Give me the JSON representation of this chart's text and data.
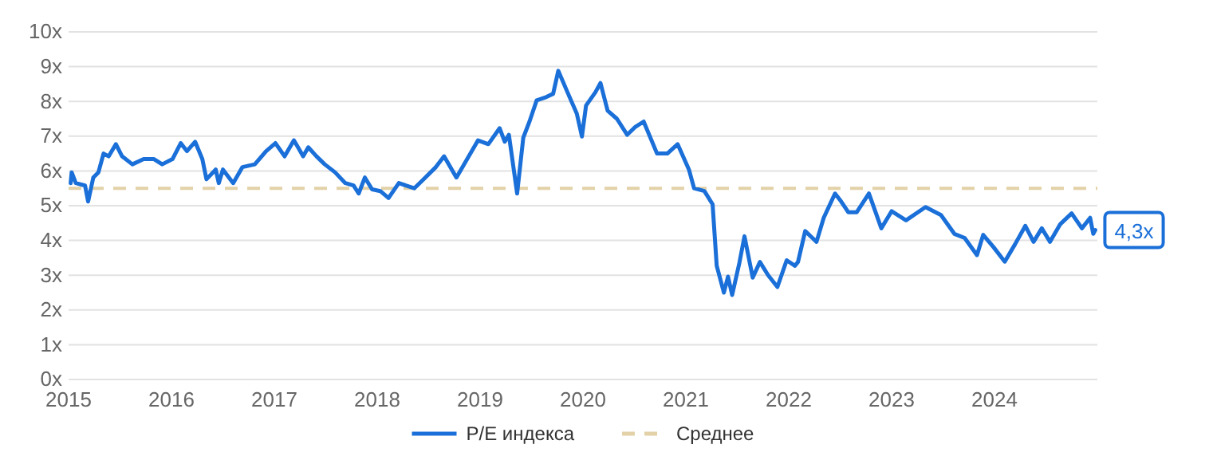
{
  "chart_data": {
    "type": "line",
    "xlim": [
      2015,
      2025
    ],
    "xticks": [
      2015,
      2016,
      2017,
      2018,
      2019,
      2020,
      2021,
      2022,
      2023,
      2024
    ],
    "ylim": [
      0,
      10
    ],
    "yticks": [
      {
        "value": 0,
        "label": "0x"
      },
      {
        "value": 1,
        "label": "1x"
      },
      {
        "value": 2,
        "label": "2x"
      },
      {
        "value": 3,
        "label": "3x"
      },
      {
        "value": 4,
        "label": "4x"
      },
      {
        "value": 5,
        "label": "5x"
      },
      {
        "value": 6,
        "label": "6x"
      },
      {
        "value": 7,
        "label": "7x"
      },
      {
        "value": 8,
        "label": "8x"
      },
      {
        "value": 9,
        "label": "9x"
      },
      {
        "value": 10,
        "label": "10x"
      }
    ],
    "grid": "y",
    "legend": "bottom",
    "marker": "none",
    "line_style": "solid",
    "series": [
      {
        "name": "P/E индекса",
        "color": "#1a6fd8",
        "x": [
          2015.02,
          2015.03,
          2015.07,
          2015.16,
          2015.19,
          2015.24,
          2015.29,
          2015.34,
          2015.39,
          2015.46,
          2015.52,
          2015.62,
          2015.73,
          2015.83,
          2015.91,
          2016.01,
          2016.09,
          2016.15,
          2016.23,
          2016.3,
          2016.34,
          2016.43,
          2016.46,
          2016.5,
          2016.6,
          2016.69,
          2016.81,
          2016.92,
          2017.01,
          2017.1,
          2017.19,
          2017.23,
          2017.28,
          2017.33,
          2017.41,
          2017.49,
          2017.59,
          2017.69,
          2017.77,
          2017.82,
          2017.88,
          2017.95,
          2018.03,
          2018.11,
          2018.21,
          2018.36,
          2018.44,
          2018.57,
          2018.65,
          2018.77,
          2018.88,
          2018.98,
          2019.08,
          2019.19,
          2019.24,
          2019.28,
          2019.36,
          2019.42,
          2019.48,
          2019.55,
          2019.63,
          2019.71,
          2019.76,
          2019.85,
          2019.94,
          2019.99,
          2020.03,
          2020.12,
          2020.17,
          2020.24,
          2020.33,
          2020.43,
          2020.51,
          2020.59,
          2020.72,
          2020.82,
          2020.92,
          2021.03,
          2021.08,
          2021.18,
          2021.26,
          2021.3,
          2021.37,
          2021.41,
          2021.45,
          2021.52,
          2021.57,
          2021.65,
          2021.72,
          2021.8,
          2021.89,
          2021.98,
          2022.06,
          2022.09,
          2022.16,
          2022.27,
          2022.34,
          2022.45,
          2022.51,
          2022.58,
          2022.66,
          2022.78,
          2022.9,
          2023.0,
          2023.14,
          2023.33,
          2023.48,
          2023.61,
          2023.71,
          2023.83,
          2023.89,
          2023.99,
          2024.1,
          2024.2,
          2024.3,
          2024.38,
          2024.46,
          2024.54,
          2024.64,
          2024.75,
          2024.85,
          2024.93,
          2024.96,
          2024.98
        ],
        "values": [
          5.65,
          5.96,
          5.65,
          5.58,
          5.12,
          5.81,
          5.96,
          6.5,
          6.42,
          6.77,
          6.42,
          6.19,
          6.34,
          6.34,
          6.19,
          6.34,
          6.8,
          6.57,
          6.84,
          6.34,
          5.76,
          6.04,
          5.65,
          6.04,
          5.65,
          6.11,
          6.19,
          6.57,
          6.8,
          6.42,
          6.88,
          6.68,
          6.42,
          6.68,
          6.42,
          6.19,
          5.96,
          5.65,
          5.58,
          5.35,
          5.81,
          5.47,
          5.42,
          5.22,
          5.65,
          5.5,
          5.73,
          6.11,
          6.42,
          5.81,
          6.37,
          6.88,
          6.77,
          7.23,
          6.84,
          7.04,
          5.35,
          6.96,
          7.42,
          8.03,
          8.11,
          8.22,
          8.88,
          8.26,
          7.65,
          6.99,
          7.88,
          8.26,
          8.53,
          7.73,
          7.5,
          7.04,
          7.27,
          7.42,
          6.5,
          6.5,
          6.77,
          6.04,
          5.5,
          5.42,
          5.04,
          3.27,
          2.5,
          2.96,
          2.43,
          3.35,
          4.12,
          2.93,
          3.38,
          3.0,
          2.66,
          3.43,
          3.27,
          3.38,
          4.27,
          3.96,
          4.65,
          5.35,
          5.12,
          4.81,
          4.81,
          5.35,
          4.35,
          4.84,
          4.58,
          4.96,
          4.73,
          4.19,
          4.07,
          3.58,
          4.16,
          3.81,
          3.39,
          3.89,
          4.42,
          3.96,
          4.35,
          3.96,
          4.47,
          4.78,
          4.35,
          4.65,
          4.19,
          4.3
        ]
      }
    ],
    "ref_lines": [
      {
        "axis": "y",
        "value": 5.5,
        "label": "Среднее",
        "color": "#e3d2a8",
        "line_style": "dashed"
      }
    ],
    "annotations": [
      {
        "text": "4,3x",
        "x": 2024.98,
        "y": 4.3
      }
    ]
  }
}
